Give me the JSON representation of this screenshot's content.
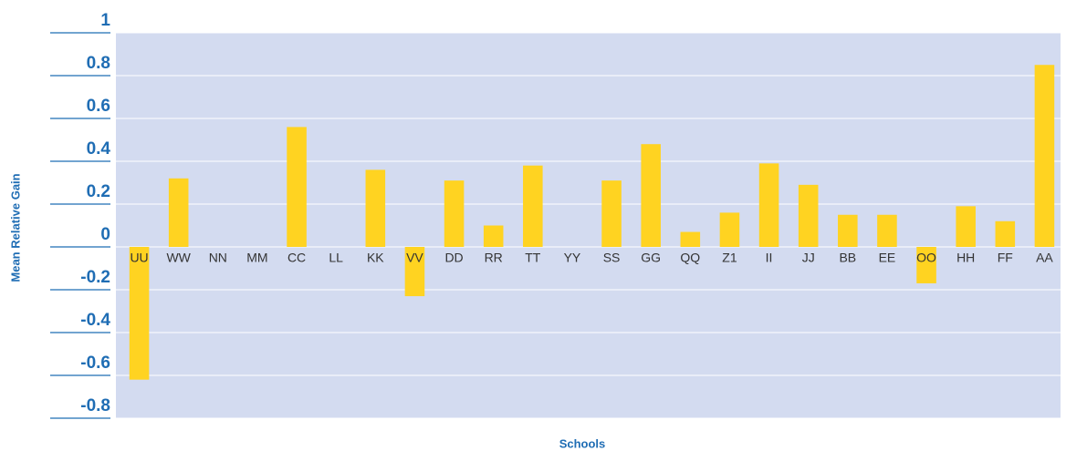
{
  "chart_data": {
    "type": "bar",
    "x_label": "Schools",
    "y_label": "Mean Relative Gain",
    "categories": [
      "UU",
      "WW",
      "NN",
      "MM",
      "CC",
      "LL",
      "KK",
      "VV",
      "DD",
      "RR",
      "TT",
      "YY",
      "SS",
      "GG",
      "QQ",
      "Z1",
      "II",
      "JJ",
      "BB",
      "EE",
      "OO",
      "HH",
      "FF",
      "AA"
    ],
    "values": [
      -0.62,
      0.32,
      0,
      0,
      0.56,
      0,
      0.36,
      -0.23,
      0.31,
      0.1,
      0.38,
      0,
      0.31,
      0.48,
      0.07,
      0.16,
      0.39,
      0.29,
      0.15,
      0.15,
      -0.17,
      0.19,
      0.12,
      0.85
    ],
    "color": "#ffd321",
    "ylim": [
      -0.8,
      1
    ],
    "yticks": [
      -0.8,
      -0.6,
      -0.4,
      -0.2,
      0,
      0.2,
      0.4,
      0.6,
      0.8,
      1
    ],
    "grid": true
  }
}
